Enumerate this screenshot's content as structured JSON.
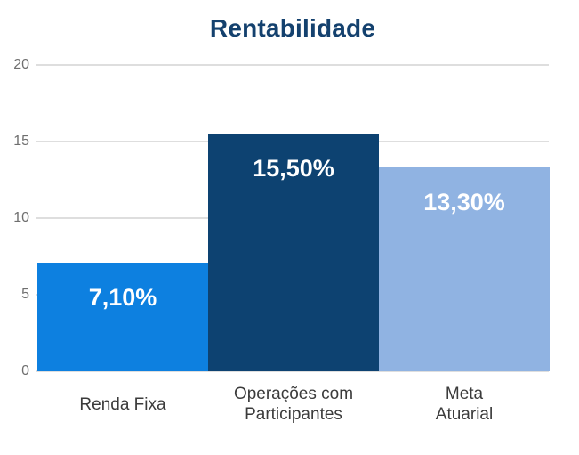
{
  "title": "Rentabilidade",
  "chart_data": {
    "type": "bar",
    "title": "Rentabilidade",
    "categories": [
      "Renda Fixa",
      "Operações com Participantes",
      "Meta Atuarial"
    ],
    "category_lines": [
      [
        "Renda Fixa"
      ],
      [
        "Operações com",
        "Participantes"
      ],
      [
        "Meta",
        "Atuarial"
      ]
    ],
    "values": [
      7.1,
      15.5,
      13.3
    ],
    "value_labels": [
      "7,10%",
      "15,50%",
      "13,30%"
    ],
    "bar_colors": [
      "#0d80e0",
      "#0d4271",
      "#90b3e2"
    ],
    "ylim": [
      0,
      20
    ],
    "yticks": [
      0,
      5,
      10,
      15,
      20
    ],
    "grid": true,
    "legend": false,
    "xlabel": "",
    "ylabel": ""
  },
  "colors": {
    "background": "#ffffff",
    "title": "#14416e",
    "tick_label": "#6f6f6f",
    "category_label": "#3b3b3b",
    "gridline": "#dedede",
    "value_label": "#ffffff"
  }
}
